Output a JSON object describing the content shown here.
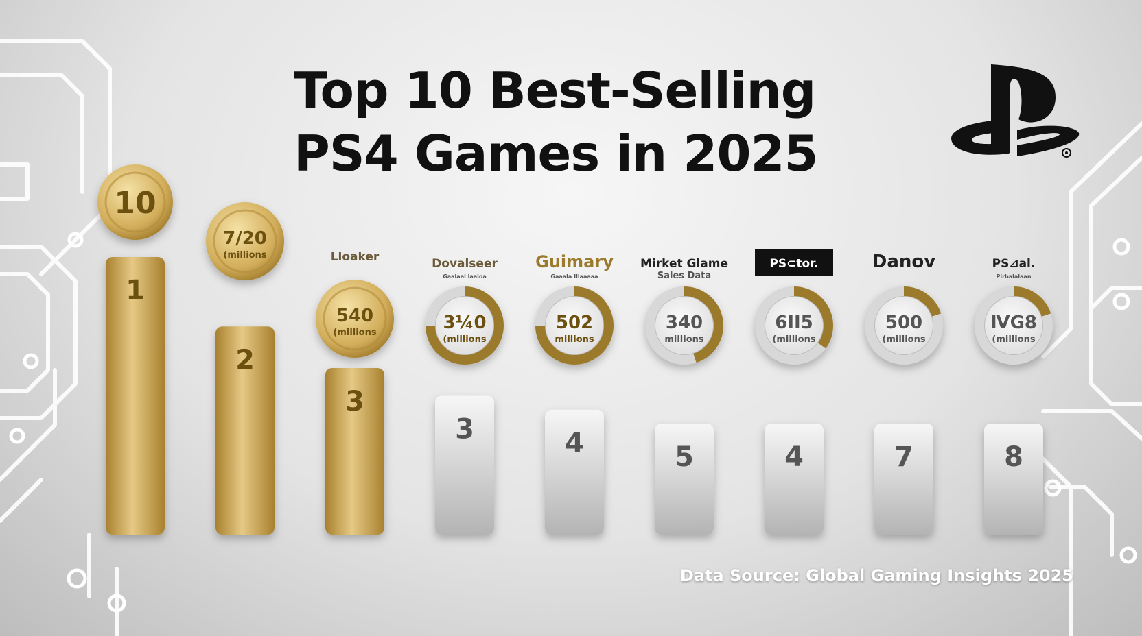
{
  "title_line1": "Top 10 Best-Selling",
  "title_line2": "PS4 Games in 2025",
  "source": "Data Source: Global Gaming Insights 2025",
  "colors": {
    "gold_light": "#e8cf8a",
    "gold": "#c9a24e",
    "gold_dark": "#9c7a2c",
    "silver_light": "#f4f4f4",
    "silver": "#cfcfcf",
    "silver_dark": "#9e9e9e",
    "text_gold": "#6b5010",
    "text_gray": "#555555"
  },
  "chart_data": {
    "type": "bar",
    "title": "Top 10 Best-Selling PS4 Games in 2025",
    "categories": [
      "1",
      "2",
      "3",
      "3",
      "4",
      "5",
      "4",
      "7",
      "8"
    ],
    "values": [
      10,
      7.5,
      6,
      5,
      4.5,
      4,
      4,
      4,
      4
    ],
    "badges": [
      {
        "value": "10",
        "unit": ""
      },
      {
        "value": "7/20",
        "unit": "(millions"
      },
      {
        "value": "540",
        "unit": "(millions"
      },
      {
        "value": "3¼0",
        "unit": "(millions"
      },
      {
        "value": "502",
        "unit": "millions"
      },
      {
        "value": "340",
        "unit": "millions"
      },
      {
        "value": "6II5",
        "unit": "(millions"
      },
      {
        "value": "500",
        "unit": "(millions"
      },
      {
        "value": "ⅣG8",
        "unit": "(millions"
      }
    ],
    "headers": [
      {
        "name": "",
        "sub": ""
      },
      {
        "name": "",
        "sub": ""
      },
      {
        "name": "Lloaker",
        "sub": ""
      },
      {
        "name": "Dovalseer",
        "sub": "Gaalaal laaloa"
      },
      {
        "name": "Guimary",
        "sub": "Gaaala Illaaaaa"
      },
      {
        "name": "Mirket Glame",
        "sub": "Sales Data"
      },
      {
        "name": "PS⊂tor.",
        "sub": ""
      },
      {
        "name": "Danov",
        "sub": ""
      },
      {
        "name": "PS⊿al.",
        "sub": "Pirbalalaan"
      }
    ],
    "ring_fill": [
      1,
      1,
      1,
      0.75,
      0.75,
      0.45,
      0.35,
      0.2,
      0.2
    ],
    "tier": [
      "gold",
      "gold",
      "gold",
      "silver",
      "silver",
      "silver",
      "silver",
      "silver",
      "silver"
    ],
    "ylim": [
      0,
      10
    ],
    "xlabel": "",
    "ylabel": "",
    "grid": false,
    "legend": "none"
  }
}
